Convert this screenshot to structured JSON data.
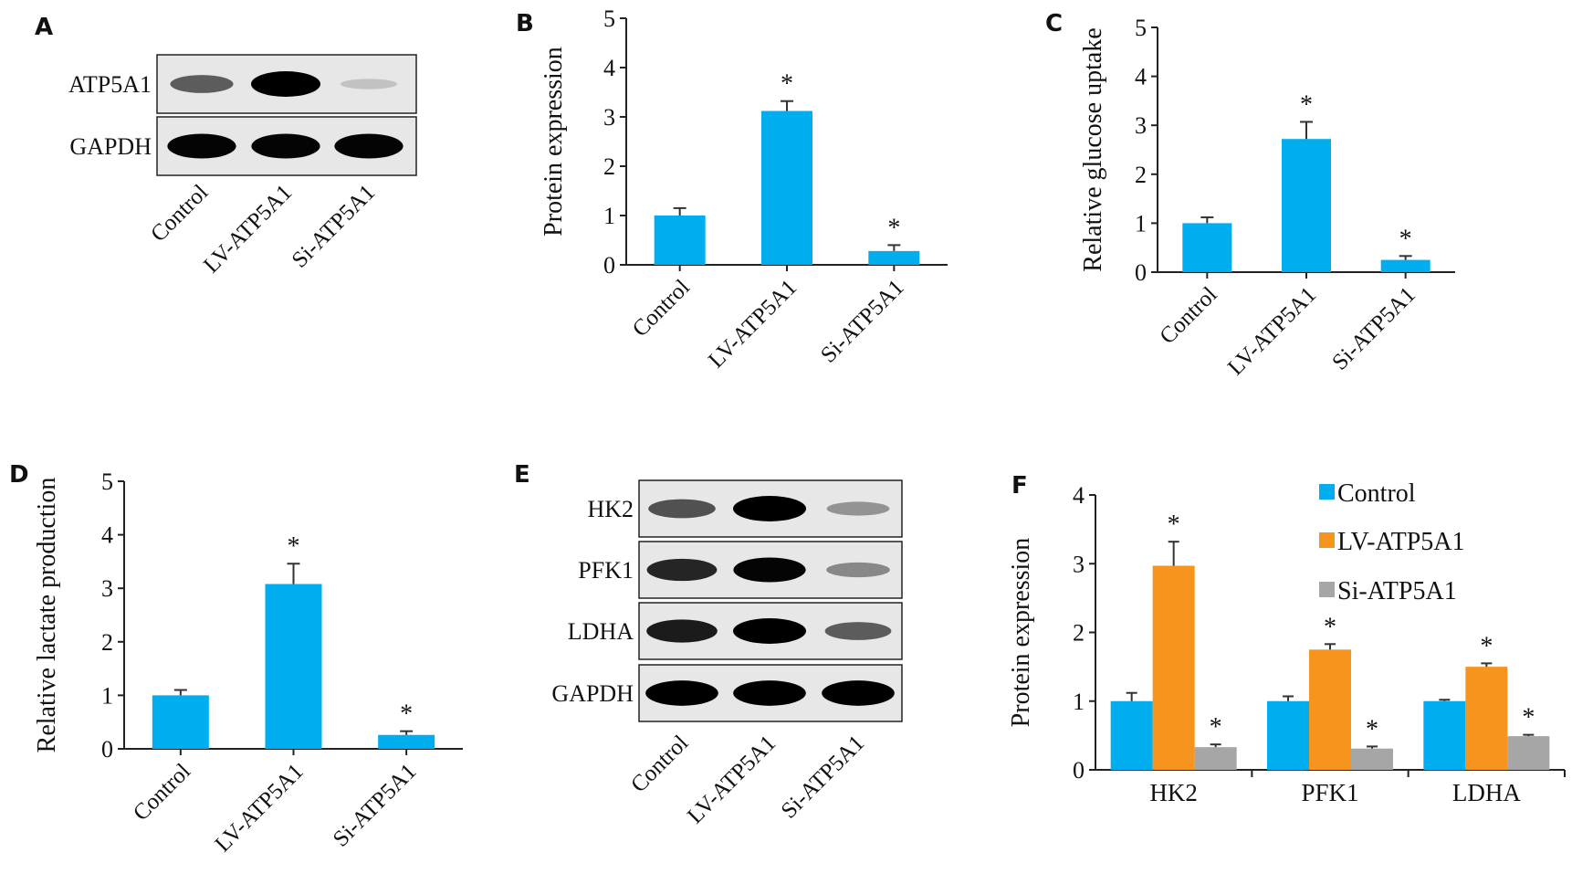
{
  "panels": {
    "A": "A",
    "B": "B",
    "C": "C",
    "D": "D",
    "E": "E",
    "F": "F"
  },
  "colors": {
    "control": "#00AEEF",
    "lv": "#F7941D",
    "si": "#A6A6A6",
    "axis": "#222222"
  },
  "blot_A": {
    "rows": [
      {
        "label": "ATP5A1",
        "intensity": [
          0.55,
          1.0,
          0.08
        ]
      },
      {
        "label": "GAPDH",
        "intensity": [
          0.95,
          0.95,
          0.95
        ]
      }
    ],
    "lanes": [
      "Control",
      "LV-ATP5A1",
      "Si-ATP5A1"
    ]
  },
  "blot_E": {
    "rows": [
      {
        "label": "HK2",
        "intensity": [
          0.6,
          1.0,
          0.3
        ]
      },
      {
        "label": "PFK1",
        "intensity": [
          0.8,
          0.95,
          0.35
        ]
      },
      {
        "label": "LDHA",
        "intensity": [
          0.85,
          1.0,
          0.55
        ]
      },
      {
        "label": "GAPDH",
        "intensity": [
          0.98,
          0.98,
          0.98
        ]
      }
    ],
    "lanes": [
      "Control",
      "LV-ATP5A1",
      "Si-ATP5A1"
    ]
  },
  "chart_data": [
    {
      "panel": "B",
      "type": "bar",
      "ylabel": "Protein expression",
      "ylim": [
        0,
        5
      ],
      "yticks": [
        "0",
        "1",
        "2",
        "3",
        "4",
        "5"
      ],
      "categories": [
        "Control",
        "LV-ATP5A1",
        "Si-ATP5A1"
      ],
      "values": [
        1.0,
        3.12,
        0.28
      ],
      "errors": [
        0.15,
        0.2,
        0.12
      ],
      "significance": [
        "",
        "*",
        "*"
      ]
    },
    {
      "panel": "C",
      "type": "bar",
      "ylabel": "Relative glucose uptake",
      "ylim": [
        0,
        5
      ],
      "yticks": [
        "0",
        "1",
        "2",
        "3",
        "4",
        "5"
      ],
      "categories": [
        "Control",
        "LV-ATP5A1",
        "Si-ATP5A1"
      ],
      "values": [
        1.0,
        2.72,
        0.25
      ],
      "errors": [
        0.12,
        0.35,
        0.08
      ],
      "significance": [
        "",
        "*",
        "*"
      ]
    },
    {
      "panel": "D",
      "type": "bar",
      "ylabel": "Relative lactate production",
      "ylim": [
        0,
        5
      ],
      "yticks": [
        "0",
        "1",
        "2",
        "3",
        "4",
        "5"
      ],
      "categories": [
        "Control",
        "LV-ATP5A1",
        "Si-ATP5A1"
      ],
      "values": [
        1.0,
        3.08,
        0.26
      ],
      "errors": [
        0.1,
        0.38,
        0.07
      ],
      "significance": [
        "",
        "*",
        "*"
      ]
    },
    {
      "panel": "F",
      "type": "bar",
      "ylabel": "Protein expression",
      "ylim": [
        0,
        4
      ],
      "yticks": [
        "0",
        "1",
        "2",
        "3",
        "4"
      ],
      "categories": [
        "HK2",
        "PFK1",
        "LDHA"
      ],
      "series": [
        {
          "name": "Control",
          "values": [
            1.0,
            1.0,
            1.0
          ],
          "errors": [
            0.12,
            0.07,
            0.02
          ],
          "significance": [
            "",
            "",
            ""
          ]
        },
        {
          "name": "LV-ATP5A1",
          "values": [
            2.97,
            1.75,
            1.5
          ],
          "errors": [
            0.35,
            0.08,
            0.05
          ],
          "significance": [
            "*",
            "*",
            "*"
          ]
        },
        {
          "name": "Si-ATP5A1",
          "values": [
            0.33,
            0.31,
            0.49
          ],
          "errors": [
            0.04,
            0.03,
            0.02
          ],
          "significance": [
            "*",
            "*",
            "*"
          ]
        }
      ],
      "legend": "top-right"
    }
  ]
}
